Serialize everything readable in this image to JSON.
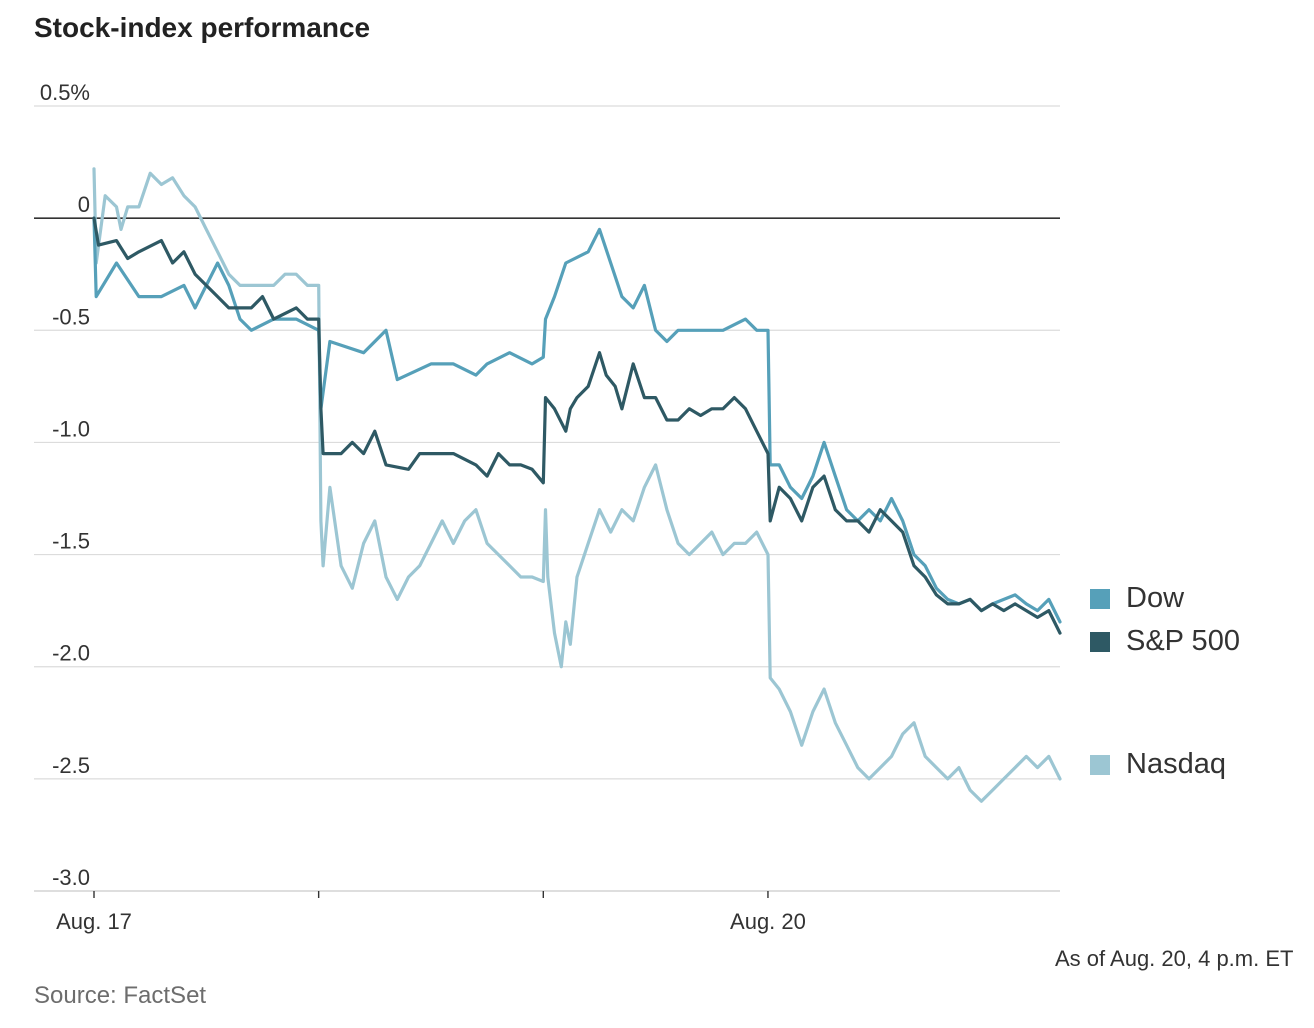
{
  "title": "Stock-index performance",
  "note": "As of Aug. 20, 4 p.m. ET",
  "source": "Source: FactSet",
  "colors": {
    "dow": "#56a0b9",
    "sp500": "#2e5964",
    "nasdaq": "#9cc6d3",
    "grid": "#dcdcdc",
    "zero": "#333333"
  },
  "chart_data": {
    "type": "line",
    "ylim": [
      -3.0,
      0.5
    ],
    "y_ticks": [
      0.5,
      0,
      -0.5,
      -1.0,
      -1.5,
      -2.0,
      -2.5,
      -3.0
    ],
    "y_tick_labels": [
      "0.5%",
      "0",
      "-0.5",
      "-1.0",
      "-1.5",
      "-2.0",
      "-2.5",
      "-3.0"
    ],
    "xlim": [
      0,
      4.3
    ],
    "x_major_ticks": [
      0,
      1,
      2,
      3,
      4.3
    ],
    "x_labels": [
      {
        "x": 0,
        "label": "Aug. 17"
      },
      {
        "x": 3,
        "label": "Aug. 20"
      }
    ],
    "grid": true,
    "legend_position": "right",
    "series": [
      {
        "name": "Dow",
        "color_key": "dow",
        "points": [
          [
            0,
            0.0
          ],
          [
            0.01,
            -0.35
          ],
          [
            0.1,
            -0.2
          ],
          [
            0.2,
            -0.35
          ],
          [
            0.3,
            -0.35
          ],
          [
            0.4,
            -0.3
          ],
          [
            0.45,
            -0.4
          ],
          [
            0.5,
            -0.3
          ],
          [
            0.55,
            -0.2
          ],
          [
            0.6,
            -0.3
          ],
          [
            0.65,
            -0.45
          ],
          [
            0.7,
            -0.5
          ],
          [
            0.8,
            -0.45
          ],
          [
            0.9,
            -0.45
          ],
          [
            1.0,
            -0.5
          ],
          [
            1.01,
            -0.85
          ],
          [
            1.05,
            -0.55
          ],
          [
            1.2,
            -0.6
          ],
          [
            1.3,
            -0.5
          ],
          [
            1.35,
            -0.72
          ],
          [
            1.5,
            -0.65
          ],
          [
            1.6,
            -0.65
          ],
          [
            1.7,
            -0.7
          ],
          [
            1.75,
            -0.65
          ],
          [
            1.85,
            -0.6
          ],
          [
            1.95,
            -0.65
          ],
          [
            2.0,
            -0.62
          ],
          [
            2.01,
            -0.45
          ],
          [
            2.05,
            -0.35
          ],
          [
            2.1,
            -0.2
          ],
          [
            2.2,
            -0.15
          ],
          [
            2.25,
            -0.05
          ],
          [
            2.3,
            -0.2
          ],
          [
            2.35,
            -0.35
          ],
          [
            2.4,
            -0.4
          ],
          [
            2.45,
            -0.3
          ],
          [
            2.5,
            -0.5
          ],
          [
            2.55,
            -0.55
          ],
          [
            2.6,
            -0.5
          ],
          [
            2.7,
            -0.5
          ],
          [
            2.8,
            -0.5
          ],
          [
            2.9,
            -0.45
          ],
          [
            2.95,
            -0.5
          ],
          [
            3.0,
            -0.5
          ],
          [
            3.01,
            -1.1
          ],
          [
            3.05,
            -1.1
          ],
          [
            3.1,
            -1.2
          ],
          [
            3.15,
            -1.25
          ],
          [
            3.2,
            -1.15
          ],
          [
            3.25,
            -1.0
          ],
          [
            3.3,
            -1.15
          ],
          [
            3.35,
            -1.3
          ],
          [
            3.4,
            -1.35
          ],
          [
            3.45,
            -1.3
          ],
          [
            3.5,
            -1.35
          ],
          [
            3.55,
            -1.25
          ],
          [
            3.6,
            -1.35
          ],
          [
            3.65,
            -1.5
          ],
          [
            3.7,
            -1.55
          ],
          [
            3.75,
            -1.65
          ],
          [
            3.8,
            -1.7
          ],
          [
            3.85,
            -1.72
          ],
          [
            3.9,
            -1.7
          ],
          [
            3.95,
            -1.75
          ],
          [
            4.0,
            -1.72
          ],
          [
            4.05,
            -1.7
          ],
          [
            4.1,
            -1.68
          ],
          [
            4.15,
            -1.72
          ],
          [
            4.2,
            -1.75
          ],
          [
            4.25,
            -1.7
          ],
          [
            4.3,
            -1.8
          ]
        ]
      },
      {
        "name": "S&P 500",
        "color_key": "sp500",
        "points": [
          [
            0,
            0.0
          ],
          [
            0.02,
            -0.12
          ],
          [
            0.1,
            -0.1
          ],
          [
            0.15,
            -0.18
          ],
          [
            0.2,
            -0.15
          ],
          [
            0.3,
            -0.1
          ],
          [
            0.35,
            -0.2
          ],
          [
            0.4,
            -0.15
          ],
          [
            0.45,
            -0.25
          ],
          [
            0.55,
            -0.35
          ],
          [
            0.6,
            -0.4
          ],
          [
            0.7,
            -0.4
          ],
          [
            0.75,
            -0.35
          ],
          [
            0.8,
            -0.45
          ],
          [
            0.9,
            -0.4
          ],
          [
            0.95,
            -0.45
          ],
          [
            1.0,
            -0.45
          ],
          [
            1.01,
            -0.85
          ],
          [
            1.02,
            -1.05
          ],
          [
            1.1,
            -1.05
          ],
          [
            1.15,
            -1.0
          ],
          [
            1.2,
            -1.05
          ],
          [
            1.25,
            -0.95
          ],
          [
            1.3,
            -1.1
          ],
          [
            1.4,
            -1.12
          ],
          [
            1.45,
            -1.05
          ],
          [
            1.5,
            -1.05
          ],
          [
            1.55,
            -1.05
          ],
          [
            1.6,
            -1.05
          ],
          [
            1.7,
            -1.1
          ],
          [
            1.75,
            -1.15
          ],
          [
            1.8,
            -1.05
          ],
          [
            1.85,
            -1.1
          ],
          [
            1.9,
            -1.1
          ],
          [
            1.95,
            -1.12
          ],
          [
            2.0,
            -1.18
          ],
          [
            2.01,
            -0.8
          ],
          [
            2.05,
            -0.85
          ],
          [
            2.1,
            -0.95
          ],
          [
            2.12,
            -0.85
          ],
          [
            2.15,
            -0.8
          ],
          [
            2.2,
            -0.75
          ],
          [
            2.25,
            -0.6
          ],
          [
            2.28,
            -0.7
          ],
          [
            2.32,
            -0.75
          ],
          [
            2.35,
            -0.85
          ],
          [
            2.4,
            -0.65
          ],
          [
            2.45,
            -0.8
          ],
          [
            2.5,
            -0.8
          ],
          [
            2.55,
            -0.9
          ],
          [
            2.6,
            -0.9
          ],
          [
            2.65,
            -0.85
          ],
          [
            2.7,
            -0.88
          ],
          [
            2.75,
            -0.85
          ],
          [
            2.8,
            -0.85
          ],
          [
            2.85,
            -0.8
          ],
          [
            2.9,
            -0.85
          ],
          [
            2.95,
            -0.95
          ],
          [
            3.0,
            -1.05
          ],
          [
            3.01,
            -1.35
          ],
          [
            3.05,
            -1.2
          ],
          [
            3.1,
            -1.25
          ],
          [
            3.15,
            -1.35
          ],
          [
            3.2,
            -1.2
          ],
          [
            3.25,
            -1.15
          ],
          [
            3.3,
            -1.3
          ],
          [
            3.35,
            -1.35
          ],
          [
            3.4,
            -1.35
          ],
          [
            3.45,
            -1.4
          ],
          [
            3.5,
            -1.3
          ],
          [
            3.55,
            -1.35
          ],
          [
            3.6,
            -1.4
          ],
          [
            3.65,
            -1.55
          ],
          [
            3.7,
            -1.6
          ],
          [
            3.75,
            -1.68
          ],
          [
            3.8,
            -1.72
          ],
          [
            3.85,
            -1.72
          ],
          [
            3.9,
            -1.7
          ],
          [
            3.95,
            -1.75
          ],
          [
            4.0,
            -1.72
          ],
          [
            4.05,
            -1.75
          ],
          [
            4.1,
            -1.72
          ],
          [
            4.15,
            -1.75
          ],
          [
            4.2,
            -1.78
          ],
          [
            4.25,
            -1.75
          ],
          [
            4.3,
            -1.85
          ]
        ]
      },
      {
        "name": "Nasdaq",
        "color_key": "nasdaq",
        "points": [
          [
            0,
            0.22
          ],
          [
            0.01,
            -0.2
          ],
          [
            0.05,
            0.1
          ],
          [
            0.1,
            0.05
          ],
          [
            0.12,
            -0.05
          ],
          [
            0.15,
            0.05
          ],
          [
            0.2,
            0.05
          ],
          [
            0.25,
            0.2
          ],
          [
            0.3,
            0.15
          ],
          [
            0.35,
            0.18
          ],
          [
            0.4,
            0.1
          ],
          [
            0.45,
            0.05
          ],
          [
            0.5,
            -0.05
          ],
          [
            0.55,
            -0.15
          ],
          [
            0.6,
            -0.25
          ],
          [
            0.65,
            -0.3
          ],
          [
            0.7,
            -0.3
          ],
          [
            0.75,
            -0.3
          ],
          [
            0.8,
            -0.3
          ],
          [
            0.85,
            -0.25
          ],
          [
            0.9,
            -0.25
          ],
          [
            0.95,
            -0.3
          ],
          [
            1.0,
            -0.3
          ],
          [
            1.01,
            -1.35
          ],
          [
            1.02,
            -1.55
          ],
          [
            1.05,
            -1.2
          ],
          [
            1.1,
            -1.55
          ],
          [
            1.15,
            -1.65
          ],
          [
            1.2,
            -1.45
          ],
          [
            1.25,
            -1.35
          ],
          [
            1.3,
            -1.6
          ],
          [
            1.35,
            -1.7
          ],
          [
            1.4,
            -1.6
          ],
          [
            1.45,
            -1.55
          ],
          [
            1.5,
            -1.45
          ],
          [
            1.55,
            -1.35
          ],
          [
            1.6,
            -1.45
          ],
          [
            1.65,
            -1.35
          ],
          [
            1.7,
            -1.3
          ],
          [
            1.75,
            -1.45
          ],
          [
            1.8,
            -1.5
          ],
          [
            1.85,
            -1.55
          ],
          [
            1.9,
            -1.6
          ],
          [
            1.95,
            -1.6
          ],
          [
            2.0,
            -1.62
          ],
          [
            2.01,
            -1.3
          ],
          [
            2.02,
            -1.6
          ],
          [
            2.05,
            -1.85
          ],
          [
            2.08,
            -2.0
          ],
          [
            2.1,
            -1.8
          ],
          [
            2.12,
            -1.9
          ],
          [
            2.15,
            -1.6
          ],
          [
            2.2,
            -1.45
          ],
          [
            2.25,
            -1.3
          ],
          [
            2.3,
            -1.4
          ],
          [
            2.35,
            -1.3
          ],
          [
            2.4,
            -1.35
          ],
          [
            2.45,
            -1.2
          ],
          [
            2.5,
            -1.1
          ],
          [
            2.55,
            -1.3
          ],
          [
            2.6,
            -1.45
          ],
          [
            2.65,
            -1.5
          ],
          [
            2.7,
            -1.45
          ],
          [
            2.75,
            -1.4
          ],
          [
            2.8,
            -1.5
          ],
          [
            2.85,
            -1.45
          ],
          [
            2.9,
            -1.45
          ],
          [
            2.95,
            -1.4
          ],
          [
            3.0,
            -1.5
          ],
          [
            3.01,
            -2.05
          ],
          [
            3.05,
            -2.1
          ],
          [
            3.1,
            -2.2
          ],
          [
            3.15,
            -2.35
          ],
          [
            3.2,
            -2.2
          ],
          [
            3.25,
            -2.1
          ],
          [
            3.3,
            -2.25
          ],
          [
            3.35,
            -2.35
          ],
          [
            3.4,
            -2.45
          ],
          [
            3.45,
            -2.5
          ],
          [
            3.5,
            -2.45
          ],
          [
            3.55,
            -2.4
          ],
          [
            3.6,
            -2.3
          ],
          [
            3.65,
            -2.25
          ],
          [
            3.7,
            -2.4
          ],
          [
            3.75,
            -2.45
          ],
          [
            3.8,
            -2.5
          ],
          [
            3.85,
            -2.45
          ],
          [
            3.9,
            -2.55
          ],
          [
            3.95,
            -2.6
          ],
          [
            4.0,
            -2.55
          ],
          [
            4.05,
            -2.5
          ],
          [
            4.1,
            -2.45
          ],
          [
            4.15,
            -2.4
          ],
          [
            4.2,
            -2.45
          ],
          [
            4.25,
            -2.4
          ],
          [
            4.3,
            -2.5
          ]
        ]
      }
    ]
  }
}
